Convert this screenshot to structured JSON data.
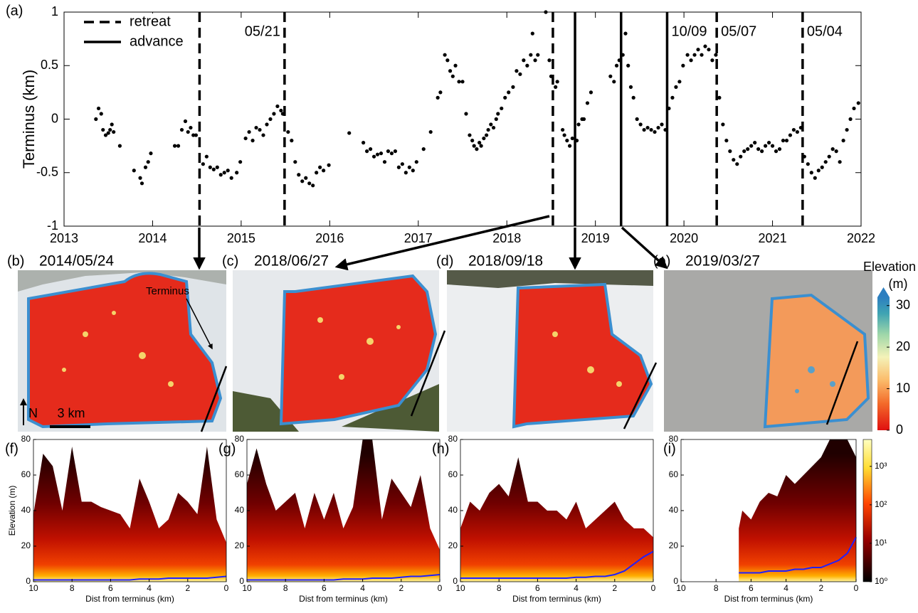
{
  "chart_data": [
    {
      "type": "scatter",
      "panel": "(a)",
      "ylabel": "Terminus (km)",
      "color": "#000000",
      "xlim": [
        2013,
        2022
      ],
      "xticks": [
        2013,
        2014,
        2015,
        2016,
        2017,
        2018,
        2019,
        2020,
        2021,
        2022
      ],
      "ylim": [
        -1,
        1
      ],
      "yticks": [
        -1,
        -0.5,
        0,
        0.5,
        1
      ],
      "x": [
        2013.36,
        2013.39,
        2013.42,
        2013.44,
        2013.47,
        2013.5,
        2013.52,
        2013.54,
        2013.56,
        2013.63,
        2013.79,
        2013.86,
        2013.88,
        2013.92,
        2013.95,
        2013.98,
        2014.25,
        2014.29,
        2014.33,
        2014.37,
        2014.4,
        2014.43,
        2014.46,
        2014.49,
        2014.57,
        2014.61,
        2014.65,
        2014.69,
        2014.73,
        2014.77,
        2014.81,
        2014.85,
        2014.89,
        2014.95,
        2014.99,
        2015.05,
        2015.09,
        2015.13,
        2015.17,
        2015.21,
        2015.25,
        2015.29,
        2015.33,
        2015.37,
        2015.41,
        2015.45,
        2015.47,
        2015.53,
        2015.57,
        2015.61,
        2015.65,
        2015.69,
        2015.73,
        2015.77,
        2015.81,
        2015.85,
        2015.89,
        2015.93,
        2015.99,
        2016.22,
        2016.38,
        2016.42,
        2016.46,
        2016.5,
        2016.54,
        2016.58,
        2016.62,
        2016.66,
        2016.7,
        2016.74,
        2016.78,
        2016.82,
        2016.86,
        2016.9,
        2016.94,
        2016.98,
        2017.06,
        2017.14,
        2017.22,
        2017.25,
        2017.3,
        2017.33,
        2017.36,
        2017.39,
        2017.42,
        2017.46,
        2017.5,
        2017.54,
        2017.58,
        2017.61,
        2017.63,
        2017.66,
        2017.69,
        2017.71,
        2017.74,
        2017.77,
        2017.79,
        2017.82,
        2017.85,
        2017.88,
        2017.9,
        2017.94,
        2017.98,
        2018.02,
        2018.07,
        2018.11,
        2018.15,
        2018.19,
        2018.23,
        2018.27,
        2018.29,
        2018.32,
        2018.35,
        2018.44,
        2018.48,
        2018.5,
        2018.55,
        2018.57,
        2018.63,
        2018.65,
        2018.68,
        2018.71,
        2018.74,
        2018.79,
        2018.81,
        2018.85,
        2018.87,
        2018.91,
        2018.95,
        2019.17,
        2019.21,
        2019.24,
        2019.27,
        2019.31,
        2019.34,
        2019.37,
        2019.4,
        2019.43,
        2019.47,
        2019.51,
        2019.55,
        2019.59,
        2019.63,
        2019.67,
        2019.71,
        2019.75,
        2019.79,
        2019.83,
        2019.87,
        2019.91,
        2019.95,
        2019.99,
        2020.04,
        2020.08,
        2020.12,
        2020.16,
        2020.2,
        2020.24,
        2020.28,
        2020.32,
        2020.36,
        2020.4,
        2020.44,
        2020.48,
        2020.52,
        2020.56,
        2020.6,
        2020.64,
        2020.68,
        2020.72,
        2020.76,
        2020.8,
        2020.84,
        2020.88,
        2020.92,
        2020.96,
        2021.0,
        2021.04,
        2021.08,
        2021.12,
        2021.16,
        2021.2,
        2021.24,
        2021.28,
        2021.32,
        2021.36,
        2021.4,
        2021.44,
        2021.48,
        2021.52,
        2021.56,
        2021.6,
        2021.64,
        2021.68,
        2021.72,
        2021.76,
        2021.8,
        2021.84,
        2021.88,
        2021.92,
        2021.97
      ],
      "values": [
        0,
        0.1,
        0.05,
        -0.1,
        -0.15,
        -0.13,
        -0.1,
        -0.05,
        -0.12,
        -0.25,
        -0.48,
        -0.55,
        -0.6,
        -0.45,
        -0.4,
        -0.32,
        -0.25,
        -0.25,
        -0.1,
        -0.02,
        -0.12,
        -0.08,
        -0.15,
        -0.15,
        -0.42,
        -0.35,
        -0.45,
        -0.47,
        -0.45,
        -0.52,
        -0.5,
        -0.48,
        -0.55,
        -0.5,
        -0.4,
        -0.18,
        -0.12,
        -0.2,
        -0.08,
        -0.1,
        -0.15,
        -0.05,
        0,
        0.05,
        0.12,
        0.08,
        0.05,
        -0.12,
        -0.2,
        -0.4,
        -0.52,
        -0.58,
        -0.55,
        -0.6,
        -0.62,
        -0.5,
        -0.45,
        -0.48,
        -0.43,
        -0.13,
        -0.22,
        -0.3,
        -0.28,
        -0.35,
        -0.33,
        -0.32,
        -0.4,
        -0.3,
        -0.32,
        -0.3,
        -0.45,
        -0.42,
        -0.5,
        -0.45,
        -0.48,
        -0.4,
        -0.28,
        -0.12,
        0.2,
        0.25,
        0.6,
        0.55,
        0.45,
        0.4,
        0.5,
        0.35,
        0.35,
        0.05,
        -0.15,
        -0.2,
        -0.25,
        -0.28,
        -0.22,
        -0.25,
        -0.18,
        -0.15,
        -0.1,
        -0.05,
        -0.08,
        0,
        0.05,
        0.1,
        0.2,
        0.25,
        0.3,
        0.45,
        0.42,
        0.55,
        0.5,
        0.6,
        0.8,
        0.55,
        0.6,
        1,
        0.55,
        0.4,
        0.3,
        0.35,
        -0.1,
        -0.15,
        -0.2,
        -0.25,
        -0.18,
        -0.2,
        -0.05,
        0,
        0,
        0.15,
        0.25,
        0.4,
        0.35,
        0.5,
        0.55,
        0.6,
        0.8,
        0.5,
        0.3,
        0.2,
        0,
        -0.05,
        -0.1,
        -0.08,
        -0.1,
        -0.12,
        -0.08,
        -0.05,
        -0.1,
        0.1,
        0.2,
        0.3,
        0.35,
        0.5,
        0.6,
        0.55,
        0.6,
        0.65,
        0.6,
        0.68,
        0.65,
        0.55,
        0.6,
        0.2,
        -0.05,
        -0.2,
        -0.3,
        -0.38,
        -0.42,
        -0.35,
        -0.3,
        -0.28,
        -0.25,
        -0.22,
        -0.28,
        -0.3,
        -0.25,
        -0.22,
        -0.25,
        -0.3,
        -0.28,
        -0.2,
        -0.2,
        -0.15,
        -0.1,
        -0.12,
        -0.08,
        -0.35,
        -0.42,
        -0.5,
        -0.55,
        -0.48,
        -0.45,
        -0.4,
        -0.35,
        -0.28,
        -0.3,
        -0.4,
        -0.2,
        -0.1,
        0,
        0.1,
        0.15
      ],
      "lines": [
        {
          "name": "retreat",
          "dashed": true,
          "x": [
            2014.53,
            2015.49,
            2018.52,
            2020.37,
            2021.34
          ],
          "labels": [
            null,
            {
              "text": "05/21",
              "anchor": "end"
            },
            null,
            {
              "text": "05/07",
              "anchor": "start"
            },
            {
              "text": "05/04",
              "anchor": "start"
            }
          ]
        },
        {
          "name": "advance",
          "dashed": false,
          "x": [
            2018.77,
            2019.29,
            2019.81
          ],
          "labels": [
            null,
            null,
            {
              "text": "10/09",
              "anchor": "start"
            }
          ]
        }
      ]
    },
    {
      "type": "density",
      "panel": "(f)",
      "ylabel": "Elevation (m)",
      "xlabel": "Dist from terminus (km)",
      "xlim": [
        10,
        0
      ],
      "xticks": [
        10,
        8,
        6,
        4,
        2,
        0
      ],
      "ylim": [
        0,
        80
      ],
      "yticks": [
        0,
        20,
        40,
        60,
        80
      ],
      "x": [
        10,
        9.5,
        9,
        8.5,
        8,
        7.5,
        7,
        6.5,
        6,
        5.5,
        5,
        4.5,
        4,
        3.5,
        3,
        2.5,
        2,
        1.5,
        1,
        0.5,
        0
      ],
      "upper": [
        38,
        72,
        65,
        40,
        76,
        45,
        45,
        42,
        40,
        38,
        30,
        58,
        45,
        30,
        35,
        50,
        45,
        38,
        76,
        35,
        22
      ],
      "values": [
        1,
        1,
        1,
        1,
        1,
        1,
        1,
        1,
        1,
        1,
        1,
        1.5,
        1.5,
        1.5,
        2,
        2,
        2,
        2,
        2,
        2.5,
        3
      ],
      "color": "#1f1fff"
    },
    {
      "type": "density",
      "panel": "(g)",
      "xlabel": "Dist from terminus (km)",
      "xlim": [
        10,
        0
      ],
      "xticks": [
        10,
        8,
        6,
        4,
        2,
        0
      ],
      "ylim": [
        0,
        80
      ],
      "yticks": [
        0,
        20,
        40,
        60,
        80
      ],
      "x": [
        10,
        9.5,
        9,
        8.5,
        8,
        7.5,
        7,
        6.5,
        6,
        5.5,
        5,
        4.5,
        4,
        3.5,
        3,
        2.5,
        2,
        1.5,
        1,
        0.5,
        0
      ],
      "upper": [
        55,
        75,
        55,
        40,
        45,
        50,
        30,
        50,
        35,
        50,
        30,
        42,
        80,
        80,
        35,
        58,
        50,
        42,
        60,
        30,
        18
      ],
      "values": [
        1,
        1,
        1,
        1,
        1,
        1,
        1,
        1,
        1,
        1,
        1.5,
        1.5,
        1.5,
        2,
        2,
        2,
        2.5,
        3,
        3,
        3.5,
        4
      ],
      "color": "#1f1fff"
    },
    {
      "type": "density",
      "panel": "(h)",
      "xlabel": "Dist from terminus (km)",
      "xlim": [
        10,
        0
      ],
      "xticks": [
        10,
        8,
        6,
        4,
        2,
        0
      ],
      "ylim": [
        0,
        80
      ],
      "yticks": [
        0,
        20,
        40,
        60,
        80
      ],
      "x": [
        10,
        9.5,
        9,
        8.5,
        8,
        7.5,
        7,
        6.5,
        6,
        5.5,
        5,
        4.5,
        4,
        3.5,
        3,
        2.5,
        2,
        1.5,
        1,
        0.5,
        0
      ],
      "upper": [
        30,
        45,
        40,
        50,
        55,
        48,
        70,
        45,
        45,
        40,
        40,
        35,
        45,
        30,
        35,
        40,
        45,
        35,
        30,
        30,
        25
      ],
      "values": [
        2,
        2,
        2,
        2,
        2,
        2,
        2,
        2,
        2,
        2,
        2,
        2,
        2.5,
        2.5,
        3,
        3,
        4,
        6,
        10,
        14,
        17
      ],
      "color": "#1f1fff"
    },
    {
      "type": "density",
      "panel": "(i)",
      "xlabel": "Dist from terminus (km)",
      "xlim": [
        10,
        0
      ],
      "xticks": [
        10,
        8,
        6,
        4,
        2,
        0
      ],
      "ylim": [
        0,
        80
      ],
      "yticks": [
        0,
        20,
        40,
        60,
        80
      ],
      "x": [
        6.7,
        6.5,
        6,
        5.5,
        5,
        4.5,
        4,
        3.5,
        3,
        2.5,
        2,
        1.5,
        1,
        0.5,
        0
      ],
      "upper": [
        30,
        40,
        35,
        45,
        50,
        48,
        60,
        55,
        60,
        65,
        70,
        80,
        80,
        80,
        70
      ],
      "values": [
        5,
        5,
        5,
        5,
        6,
        6,
        6,
        7,
        7,
        8,
        8,
        10,
        12,
        16,
        25
      ],
      "color": "#1f1fff",
      "colorbar": {
        "log": true,
        "lim": [
          1,
          5000
        ],
        "ticks": [
          {
            "value": 1,
            "label": "10⁰"
          },
          {
            "value": 10,
            "label": "10¹"
          },
          {
            "value": 100,
            "label": "10²"
          },
          {
            "value": 1000,
            "label": "10³"
          }
        ]
      }
    }
  ],
  "maps": [
    {
      "panel": "(b)",
      "date": "2014/05/24"
    },
    {
      "panel": "(c)",
      "date": "2018/06/27"
    },
    {
      "panel": "(d)",
      "date": "2018/09/18"
    },
    {
      "panel": "(e)",
      "date": "2019/03/27"
    }
  ],
  "map_annotations": {
    "terminus": "Terminus",
    "north": "N",
    "scale": "3 km"
  },
  "map_colorbar": {
    "title": "Elevation",
    "unit": "(m)",
    "lim": [
      0,
      32
    ],
    "ticks": [
      0,
      10,
      20,
      30
    ]
  }
}
